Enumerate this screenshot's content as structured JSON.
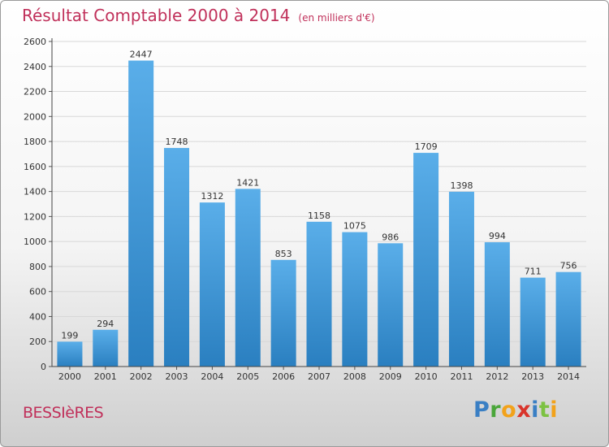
{
  "title": "Résultat Comptable 2000 à 2014",
  "unit": "(en milliers d'€)",
  "commune": "BESSIèRES",
  "logo": "Proxiti",
  "colors": {
    "title": "#c0305a",
    "bar_top": "#5aaee9",
    "bar_bottom": "#2a7fc0",
    "grid": "#d8d8d8"
  },
  "chart_data": {
    "type": "bar",
    "title": "Résultat Comptable 2000 à 2014",
    "subtitle": "(en milliers d'€)",
    "xlabel": "",
    "ylabel": "",
    "categories": [
      "2000",
      "2001",
      "2002",
      "2003",
      "2004",
      "2005",
      "2006",
      "2007",
      "2008",
      "2009",
      "2010",
      "2011",
      "2012",
      "2013",
      "2014"
    ],
    "values": [
      199,
      294,
      2447,
      1748,
      1312,
      1421,
      853,
      1158,
      1075,
      986,
      1709,
      1398,
      994,
      711,
      756
    ],
    "ylim": [
      0,
      2600
    ],
    "yticks": [
      0,
      200,
      400,
      600,
      800,
      1000,
      1200,
      1400,
      1600,
      1800,
      2000,
      2200,
      2400,
      2600
    ],
    "grid": true,
    "data_labels": true
  }
}
